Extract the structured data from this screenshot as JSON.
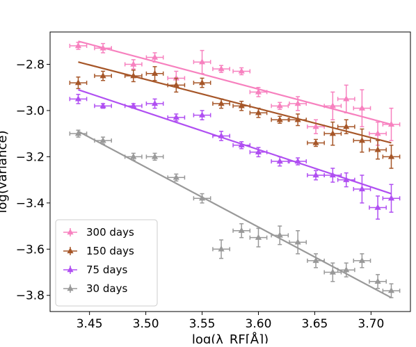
{
  "chart_data": {
    "type": "scatter",
    "xlabel": "log(λ_RF[Å])",
    "ylabel": "log(variance)",
    "xlim": [
      3.415,
      3.735
    ],
    "ylim": [
      -3.87,
      -2.66
    ],
    "xticks": [
      3.45,
      3.5,
      3.55,
      3.6,
      3.65,
      3.7
    ],
    "xtick_labels": [
      "3.45",
      "3.50",
      "3.55",
      "3.60",
      "3.65",
      "3.70"
    ],
    "yticks": [
      -2.8,
      -3.0,
      -3.2,
      -3.4,
      -3.6,
      -3.8
    ],
    "ytick_labels": [
      "−2.8",
      "−3.0",
      "−3.2",
      "−3.4",
      "−3.6",
      "−3.8"
    ],
    "legend_position": "bottom-left",
    "series": [
      {
        "name": "300 days",
        "color": "#f781bf",
        "x": [
          3.44,
          3.462,
          3.489,
          3.508,
          3.527,
          3.55,
          3.567,
          3.585,
          3.6,
          3.619,
          3.635,
          3.651,
          3.666,
          3.678,
          3.692,
          3.706,
          3.718
        ],
        "y": [
          -2.72,
          -2.73,
          -2.8,
          -2.77,
          -2.86,
          -2.79,
          -2.82,
          -2.83,
          -2.92,
          -2.98,
          -2.97,
          -3.07,
          -2.98,
          -2.95,
          -2.99,
          -3.1,
          -3.06
        ],
        "yerr": [
          0.015,
          0.02,
          0.02,
          0.02,
          0.03,
          0.05,
          0.015,
          0.015,
          0.02,
          0.015,
          0.03,
          0.03,
          0.06,
          0.06,
          0.08,
          0.05,
          0.07
        ],
        "fit": [
          [
            3.44,
            -2.7
          ],
          [
            3.718,
            -3.06
          ]
        ]
      },
      {
        "name": "150 days",
        "color": "#a65628",
        "x": [
          3.44,
          3.462,
          3.489,
          3.508,
          3.527,
          3.55,
          3.567,
          3.585,
          3.6,
          3.619,
          3.635,
          3.651,
          3.666,
          3.678,
          3.692,
          3.706,
          3.718
        ],
        "y": [
          -2.88,
          -2.85,
          -2.85,
          -2.84,
          -2.89,
          -2.88,
          -2.97,
          -2.98,
          -3.01,
          -3.04,
          -3.04,
          -3.14,
          -3.1,
          -3.07,
          -3.13,
          -3.17,
          -3.2
        ],
        "yerr": [
          0.025,
          0.02,
          0.025,
          0.03,
          0.03,
          0.02,
          0.02,
          0.02,
          0.02,
          0.015,
          0.025,
          0.015,
          0.05,
          0.03,
          0.05,
          0.04,
          0.05
        ],
        "fit": [
          [
            3.44,
            -2.79
          ],
          [
            3.718,
            -3.14
          ]
        ]
      },
      {
        "name": "75 days",
        "color": "#b04ff2",
        "x": [
          3.44,
          3.462,
          3.489,
          3.508,
          3.527,
          3.55,
          3.567,
          3.585,
          3.6,
          3.619,
          3.635,
          3.651,
          3.666,
          3.678,
          3.692,
          3.706,
          3.718
        ],
        "y": [
          -2.95,
          -2.98,
          -2.98,
          -2.97,
          -3.03,
          -3.02,
          -3.11,
          -3.15,
          -3.18,
          -3.22,
          -3.22,
          -3.28,
          -3.28,
          -3.3,
          -3.34,
          -3.42,
          -3.38
        ],
        "yerr": [
          0.02,
          0.01,
          0.01,
          0.02,
          0.015,
          0.02,
          0.02,
          0.015,
          0.02,
          0.02,
          0.015,
          0.02,
          0.03,
          0.03,
          0.06,
          0.05,
          0.06
        ],
        "fit": [
          [
            3.44,
            -2.91
          ],
          [
            3.718,
            -3.36
          ]
        ]
      },
      {
        "name": "30 days",
        "color": "#999999",
        "x": [
          3.44,
          3.462,
          3.489,
          3.508,
          3.527,
          3.55,
          3.567,
          3.585,
          3.6,
          3.619,
          3.635,
          3.651,
          3.666,
          3.678,
          3.692,
          3.706,
          3.718
        ],
        "y": [
          -3.1,
          -3.13,
          -3.2,
          -3.2,
          -3.29,
          -3.38,
          -3.6,
          -3.52,
          -3.55,
          -3.54,
          -3.57,
          -3.65,
          -3.7,
          -3.69,
          -3.65,
          -3.74,
          -3.78
        ],
        "yerr": [
          0.015,
          0.015,
          0.015,
          0.015,
          0.015,
          0.02,
          0.04,
          0.03,
          0.04,
          0.04,
          0.05,
          0.03,
          0.04,
          0.03,
          0.03,
          0.03,
          0.03
        ],
        "fit": [
          [
            3.44,
            -3.09
          ],
          [
            3.718,
            -3.81
          ]
        ]
      }
    ]
  }
}
